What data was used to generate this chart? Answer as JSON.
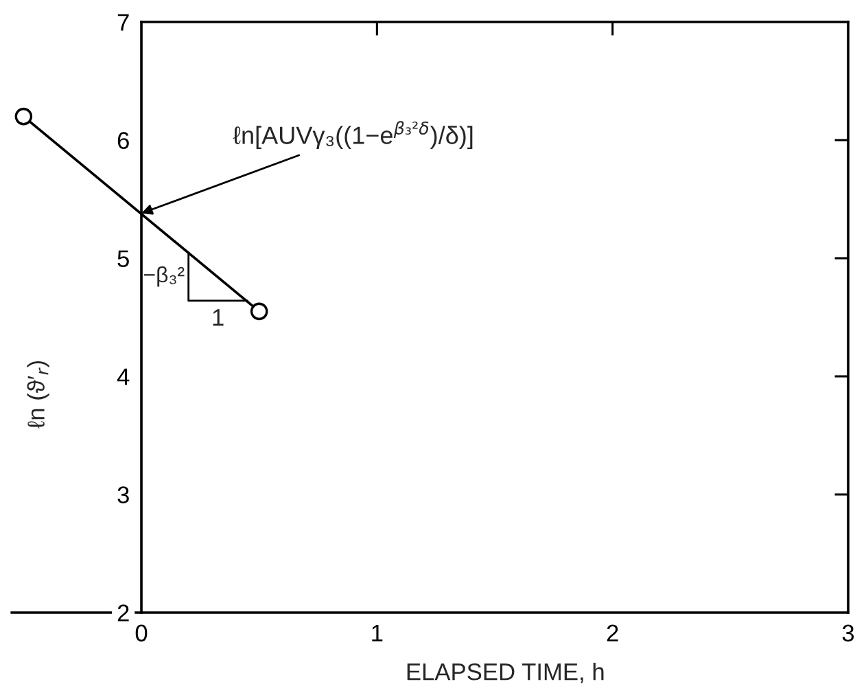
{
  "chart_data": {
    "type": "line",
    "xlabel": "ELAPSED TIME, h",
    "ylabel": "ℓn (ϑ′$_{r}$)",
    "x": [
      -0.5,
      0.5
    ],
    "series": [
      {
        "color": "#000000",
        "values": [
          6.2,
          4.55
        ]
      }
    ],
    "marker": "circle",
    "line_style": "solid",
    "xlim": [
      -0.55,
      3
    ],
    "xticks": [
      0,
      1,
      2,
      3
    ],
    "ylim": [
      2,
      7
    ],
    "yticks": [
      2,
      3,
      4,
      5,
      6,
      7
    ],
    "annotations": [
      {
        "text": "ℓn[AUVγ₃((1−e$^{β₃²δ}$)/δ)]",
        "x": 0,
        "y": 5.38
      },
      {
        "text": "−β₃²",
        "x": 0.2,
        "y": 5.05
      },
      {
        "text": "1",
        "x": 0.45,
        "y": 4.64
      }
    ]
  }
}
